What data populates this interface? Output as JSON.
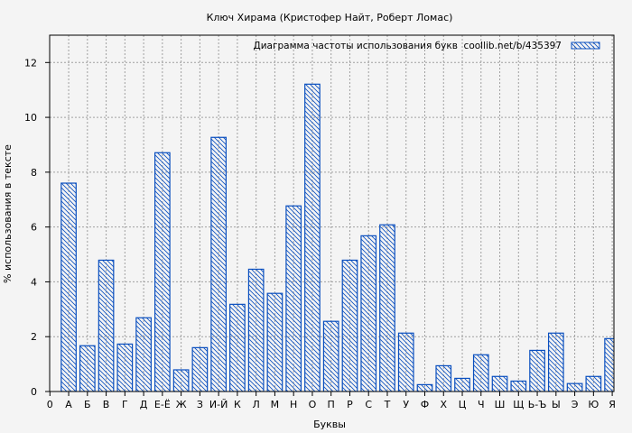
{
  "chart_data": {
    "type": "bar",
    "title": "Ключ Хирама (Кристофер Найт, Роберт Ломас)",
    "xlabel": "Буквы",
    "ylabel": "% использования в тексте",
    "legend": {
      "label": "Диаграмма частоты использования букв  coollib.net/b/435397",
      "placement": "top-right"
    },
    "x_origin_label": "0",
    "categories": [
      "А",
      "Б",
      "В",
      "Г",
      "Д",
      "Е-Ё",
      "Ж",
      "З",
      "И-Й",
      "К",
      "Л",
      "М",
      "Н",
      "О",
      "П",
      "Р",
      "С",
      "Т",
      "У",
      "Ф",
      "Х",
      "Ц",
      "Ч",
      "Ш",
      "Щ",
      "Ь-Ъ",
      "Ы",
      "Э",
      "Ю",
      "Я"
    ],
    "values": [
      7.6,
      1.67,
      4.79,
      1.73,
      2.69,
      8.71,
      0.79,
      1.6,
      9.27,
      3.18,
      4.46,
      3.58,
      6.77,
      11.21,
      2.56,
      4.79,
      5.68,
      6.08,
      2.13,
      0.25,
      0.94,
      0.48,
      1.34,
      0.55,
      0.38,
      1.5,
      2.13,
      0.29,
      0.55,
      1.93
    ],
    "ylim": [
      0,
      13
    ],
    "yticks": [
      0,
      2,
      4,
      6,
      8,
      10,
      12
    ],
    "grid": true,
    "bar_color": "#0a4fbf",
    "fill_pattern": "diagonal-hatch"
  }
}
